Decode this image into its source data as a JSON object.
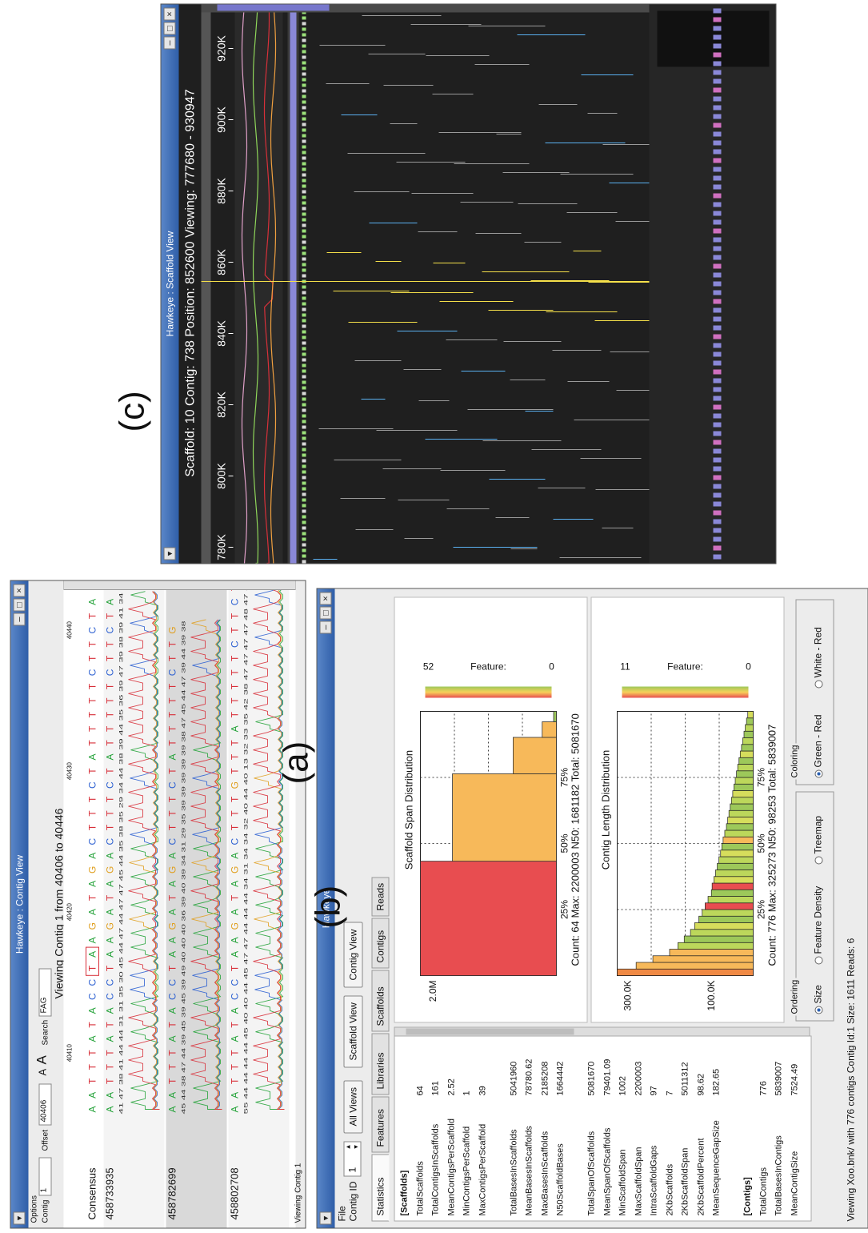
{
  "labels": {
    "a": "(a)",
    "b": "(b)",
    "c": "(c)"
  },
  "hawkeye": {
    "title": "Hawkeye",
    "menu_file": "File",
    "contig_id_label": "Contig ID",
    "contig_id_value": "1",
    "toolbar": {
      "all_views": "All Views",
      "scaffold_view": "Scaffold View",
      "contig_view": "Contig View"
    },
    "tabs": [
      "Statistics",
      "Features",
      "Libraries",
      "Scaffolds",
      "Contigs",
      "Reads"
    ],
    "stats": [
      {
        "k": "[Scaffolds]",
        "v": "",
        "header": true
      },
      {
        "k": "TotalScaffolds",
        "v": "64"
      },
      {
        "k": "TotalContigsInScaffolds",
        "v": "161"
      },
      {
        "k": "MeanContigsPerScaffold",
        "v": "2.52"
      },
      {
        "k": "MinContigsPerScaffold",
        "v": "1"
      },
      {
        "k": "MaxContigsPerScaffold",
        "v": "39"
      },
      {
        "k": "",
        "v": ""
      },
      {
        "k": "TotalBasesInScaffolds",
        "v": "5041960"
      },
      {
        "k": "MeanBasesInScaffolds",
        "v": "78780.62"
      },
      {
        "k": "MaxBasesInScaffolds",
        "v": "2185208"
      },
      {
        "k": "N50ScaffoldBases",
        "v": "1664442"
      },
      {
        "k": "",
        "v": ""
      },
      {
        "k": "TotalSpanOfScaffolds",
        "v": "5081670"
      },
      {
        "k": "MeanSpanOfScaffolds",
        "v": "79401.09"
      },
      {
        "k": "MinScaffoldSpan",
        "v": "1002"
      },
      {
        "k": "MaxScaffoldSpan",
        "v": "2200003"
      },
      {
        "k": "IntraScaffoldGaps",
        "v": "97"
      },
      {
        "k": "2KbScaffolds",
        "v": "7"
      },
      {
        "k": "2KbScaffoldSpan",
        "v": "5011312"
      },
      {
        "k": "2KbScaffoldPercent",
        "v": "98.62"
      },
      {
        "k": "MeanSequenceGapSize",
        "v": "182.65"
      },
      {
        "k": "",
        "v": ""
      },
      {
        "k": "[Contigs]",
        "v": "",
        "header": true
      },
      {
        "k": "TotalContigs",
        "v": "776"
      },
      {
        "k": "TotalBasesInContigs",
        "v": "5839007"
      },
      {
        "k": "MeanContigSize",
        "v": "7524.49"
      }
    ],
    "status": "Viewing Xoo.bnk/ with 776 contigs Contig Id:1 Size: 1611 Reads: 6",
    "ordering_label": "Ordering",
    "ordering_options": [
      "Size",
      "Feature Density",
      "Treemap"
    ],
    "coloring_label": "Coloring",
    "coloring_options": [
      "Green - Red",
      "White - Red"
    ],
    "feature_label": "Feature:",
    "feature_min": "0"
  },
  "chart_data": [
    {
      "type": "bar",
      "title": "Scaffold Span Distribution",
      "ylabel": "",
      "yticks": [
        "2.0M"
      ],
      "ymax": 2200003,
      "quantile_labels": [
        "25%",
        "50%",
        "75%"
      ],
      "bars": [
        {
          "width": 2200003,
          "height": 2200003,
          "color": "#e84d50"
        },
        {
          "width": 1681182,
          "height": 1681182,
          "color": "#f7b95a"
        },
        {
          "width": 700000,
          "height": 700000,
          "color": "#f7b95a"
        },
        {
          "width": 300000,
          "height": 230000,
          "color": "#f7b95a"
        },
        {
          "width": 200000,
          "height": 45000,
          "color": "#9dc85a"
        }
      ],
      "footer": "Count: 64   Max: 2200003   N50: 1681182   Total: 5081670",
      "legend_max": "52"
    },
    {
      "type": "bar",
      "title": "Contig Length Distribution",
      "ylabel": "",
      "yticks": [
        "100.0K",
        "300.0K"
      ],
      "ymax": 325273,
      "quantile_labels": [
        "25%",
        "50%",
        "75%"
      ],
      "values": [
        325273,
        280000,
        240000,
        200000,
        180000,
        165000,
        150000,
        140000,
        130000,
        122000,
        115000,
        108000,
        100000,
        98253,
        94000,
        90000,
        86000,
        82000,
        78000,
        75000,
        72000,
        68000,
        64000,
        61000,
        58000,
        55000,
        52000,
        49000,
        46000,
        43000,
        40000,
        37000,
        34000,
        31000,
        28000,
        25000,
        22000,
        19000,
        16000,
        13000
      ],
      "colors": [
        "#f08a45",
        "#f7b95a",
        "#f7b95a",
        "#f7b95a",
        "#bcd75b",
        "#9dc85a",
        "#bcd75b",
        "#d6dd5c",
        "#9dc85a",
        "#bcd75b",
        "#e84d50",
        "#bcd75b",
        "#9dc85a",
        "#e84d50",
        "#d6dd5c",
        "#bcd75b",
        "#9dc85a",
        "#bcd75b",
        "#d6dd5c",
        "#9dc85a",
        "#f7b95a",
        "#bcd75b",
        "#9dc85a",
        "#d6dd5c",
        "#bcd75b",
        "#9dc85a",
        "#bcd75b",
        "#d6dd5c",
        "#9dc85a",
        "#bcd75b",
        "#9dc85a",
        "#bcd75b",
        "#9dc85a",
        "#d6dd5c",
        "#9dc85a",
        "#bcd75b",
        "#9dc85a",
        "#bcd75b",
        "#9dc85a",
        "#d6dd5c"
      ],
      "footer": "Count: 776   Max: 325273   N50: 98253   Total: 5839007",
      "legend_max": "11"
    }
  ],
  "contig_view": {
    "title": "Hawkeye : Contig View",
    "options_label": "Options",
    "contig_label": "Contig",
    "contig_value": "1",
    "offset_label": "Offset",
    "offset_value": "40406",
    "font_small": "A",
    "font_large": "A",
    "search_label": "Search",
    "search_value": "FAG",
    "viewing": "Viewing Contig 1 from 40406 to 40446",
    "ruler": [
      "40410",
      "40420",
      "40430",
      "40440"
    ],
    "consensus_label": "Consensus",
    "consensus_seq": "AATTTATACCTAAGATAGACTTTCTATTTTTCTTCTA",
    "reads": [
      {
        "id": "458733935",
        "seq": "AATTTATACCTAAGATAGACTTTCTATTTTTCTTCTA",
        "qual": "41 47 38 41 44 44 31 31 35 30 45 44 47 44 47 47 45 44 35 38 35 29 34 44 38 39 44 35 36 39 47 39 38 39 41 34"
      },
      {
        "id": "458782699",
        "seq": "AATTTATACCTAAGATAGACTTTCTATTTTTCTTG",
        "qual": "45 44 38 47 44 39 45 39 45 39 49 40 40 40 36 39 40 39 34 31 29 35 39 39 39 39 39 38 47 45 44 47 39 44 39 38"
      },
      {
        "id": "458802708",
        "seq": "AATTTATACCTAAGATAGACTTTGTTTATTTTTCTTCT",
        "qual": "55 44 44 44 44 45 40 40 44 45 47 47 44 44 44 34 31 34 34 32 40 44 40 13 32 33 35 42 38 47 47 47 47 48 47 47"
      }
    ],
    "status": "Viewing Contig 1"
  },
  "scaffold_view": {
    "title": "Hawkeye : Scaffold View",
    "info": "Scaffold: 10  Contig: 738  Position: 852600  Viewing: 777680 - 930947",
    "ruler": [
      "780K",
      "800K",
      "820K",
      "840K",
      "860K",
      "880K",
      "900K",
      "920K"
    ]
  },
  "colors": {
    "title_blue": "#3a68b4",
    "bg_dark": "#1f1f1f",
    "base_A": "#25a33a",
    "base_C": "#2b5fd1",
    "base_G": "#e0a020",
    "base_T": "#d8303a"
  }
}
